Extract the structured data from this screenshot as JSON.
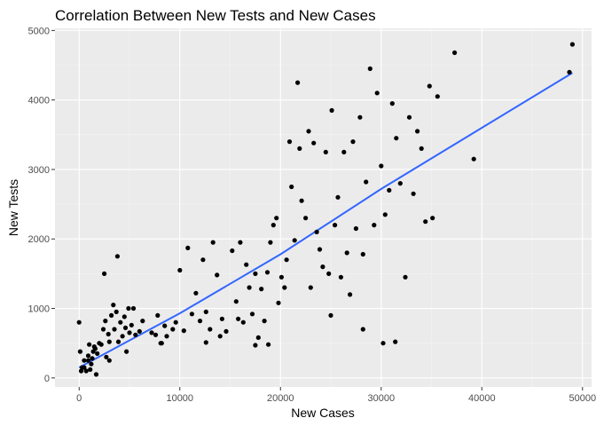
{
  "chart_data": {
    "type": "scatter",
    "title": "Correlation Between New Tests and New Cases",
    "xlabel": "New Cases",
    "ylabel": "New Tests",
    "xlim": [
      -2400,
      50900
    ],
    "ylim": [
      -130,
      5030
    ],
    "x_ticks": [
      0,
      10000,
      20000,
      30000,
      40000,
      50000
    ],
    "y_ticks": [
      0,
      1000,
      2000,
      3000,
      4000,
      5000
    ],
    "x_tick_labels": [
      "0",
      "10000",
      "20000",
      "30000",
      "40000",
      "50000"
    ],
    "y_tick_labels": [
      "0",
      "1000",
      "2000",
      "3000",
      "4000",
      "5000"
    ],
    "grid": true,
    "legend": "none",
    "colors": {
      "panel_background": "#ebebeb",
      "major_grid": "#ffffff",
      "minor_grid": "#f4f4f4",
      "points": "#000000",
      "trend_line": "#3366ff"
    },
    "trend_line": {
      "method": "linear",
      "points": [
        [
          0,
          150
        ],
        [
          10000,
          930
        ],
        [
          20000,
          1780
        ],
        [
          30000,
          2720
        ],
        [
          40000,
          3600
        ],
        [
          49000,
          4390
        ]
      ]
    },
    "points": [
      [
        0,
        800
      ],
      [
        100,
        380
      ],
      [
        300,
        150
      ],
      [
        500,
        250
      ],
      [
        700,
        100
      ],
      [
        900,
        250
      ],
      [
        1000,
        480
      ],
      [
        1100,
        120
      ],
      [
        1300,
        280
      ],
      [
        1400,
        380
      ],
      [
        1500,
        450
      ],
      [
        1700,
        50
      ],
      [
        1800,
        350
      ],
      [
        2000,
        500
      ],
      [
        2200,
        480
      ],
      [
        2400,
        700
      ],
      [
        2500,
        1500
      ],
      [
        2600,
        820
      ],
      [
        2700,
        300
      ],
      [
        2900,
        630
      ],
      [
        3000,
        520
      ],
      [
        3200,
        900
      ],
      [
        3400,
        1050
      ],
      [
        3500,
        700
      ],
      [
        3700,
        950
      ],
      [
        3800,
        1750
      ],
      [
        3900,
        520
      ],
      [
        4100,
        800
      ],
      [
        4300,
        600
      ],
      [
        4500,
        880
      ],
      [
        4600,
        720
      ],
      [
        4700,
        380
      ],
      [
        4900,
        1000
      ],
      [
        5000,
        650
      ],
      [
        5200,
        760
      ],
      [
        5400,
        1000
      ],
      [
        5600,
        620
      ],
      [
        6000,
        670
      ],
      [
        6300,
        820
      ],
      [
        7200,
        650
      ],
      [
        7600,
        620
      ],
      [
        7800,
        900
      ],
      [
        8200,
        500
      ],
      [
        8500,
        750
      ],
      [
        8700,
        600
      ],
      [
        9300,
        700
      ],
      [
        9600,
        800
      ],
      [
        10000,
        1550
      ],
      [
        10400,
        680
      ],
      [
        10800,
        1870
      ],
      [
        11200,
        920
      ],
      [
        11600,
        1220
      ],
      [
        12000,
        820
      ],
      [
        12300,
        1700
      ],
      [
        12600,
        950
      ],
      [
        13000,
        700
      ],
      [
        13300,
        1950
      ],
      [
        13700,
        1480
      ],
      [
        14000,
        600
      ],
      [
        14200,
        850
      ],
      [
        14600,
        670
      ],
      [
        15200,
        1830
      ],
      [
        15600,
        1100
      ],
      [
        15800,
        850
      ],
      [
        16000,
        1950
      ],
      [
        16300,
        800
      ],
      [
        16600,
        1630
      ],
      [
        16900,
        1300
      ],
      [
        17200,
        920
      ],
      [
        17500,
        1500
      ],
      [
        17800,
        580
      ],
      [
        18100,
        1280
      ],
      [
        18400,
        820
      ],
      [
        18700,
        1520
      ],
      [
        19000,
        1950
      ],
      [
        19300,
        2200
      ],
      [
        19600,
        2300
      ],
      [
        19800,
        1080
      ],
      [
        20100,
        1450
      ],
      [
        20400,
        1300
      ],
      [
        20600,
        1700
      ],
      [
        20900,
        3400
      ],
      [
        21100,
        2750
      ],
      [
        21400,
        1980
      ],
      [
        21700,
        4250
      ],
      [
        21900,
        3300
      ],
      [
        22100,
        2550
      ],
      [
        22500,
        2300
      ],
      [
        22800,
        3550
      ],
      [
        23000,
        1300
      ],
      [
        23300,
        3380
      ],
      [
        23600,
        2100
      ],
      [
        23900,
        1850
      ],
      [
        24200,
        1600
      ],
      [
        24500,
        3250
      ],
      [
        24800,
        1500
      ],
      [
        25100,
        3850
      ],
      [
        25400,
        2200
      ],
      [
        25700,
        2600
      ],
      [
        26000,
        1450
      ],
      [
        26300,
        3250
      ],
      [
        26600,
        1800
      ],
      [
        26900,
        1200
      ],
      [
        27200,
        3400
      ],
      [
        27500,
        2150
      ],
      [
        27900,
        3750
      ],
      [
        28200,
        1780
      ],
      [
        28500,
        2820
      ],
      [
        28900,
        4450
      ],
      [
        29300,
        2200
      ],
      [
        29600,
        4100
      ],
      [
        30000,
        3050
      ],
      [
        30400,
        2350
      ],
      [
        30800,
        2700
      ],
      [
        31100,
        3950
      ],
      [
        31500,
        3450
      ],
      [
        31900,
        2800
      ],
      [
        32400,
        1450
      ],
      [
        32800,
        3750
      ],
      [
        33200,
        2650
      ],
      [
        33600,
        3550
      ],
      [
        34000,
        3300
      ],
      [
        34400,
        2250
      ],
      [
        34800,
        4200
      ],
      [
        35100,
        2300
      ],
      [
        35600,
        4050
      ],
      [
        37300,
        4680
      ],
      [
        39200,
        3150
      ],
      [
        48700,
        4400
      ],
      [
        49000,
        4800
      ],
      [
        30200,
        500
      ],
      [
        31400,
        520
      ],
      [
        25000,
        900
      ],
      [
        28200,
        700
      ],
      [
        18800,
        480
      ],
      [
        17500,
        470
      ],
      [
        12600,
        510
      ],
      [
        8100,
        500
      ],
      [
        3000,
        250
      ],
      [
        1200,
        200
      ],
      [
        500,
        150
      ],
      [
        200,
        100
      ],
      [
        1600,
        420
      ],
      [
        900,
        320
      ]
    ]
  }
}
